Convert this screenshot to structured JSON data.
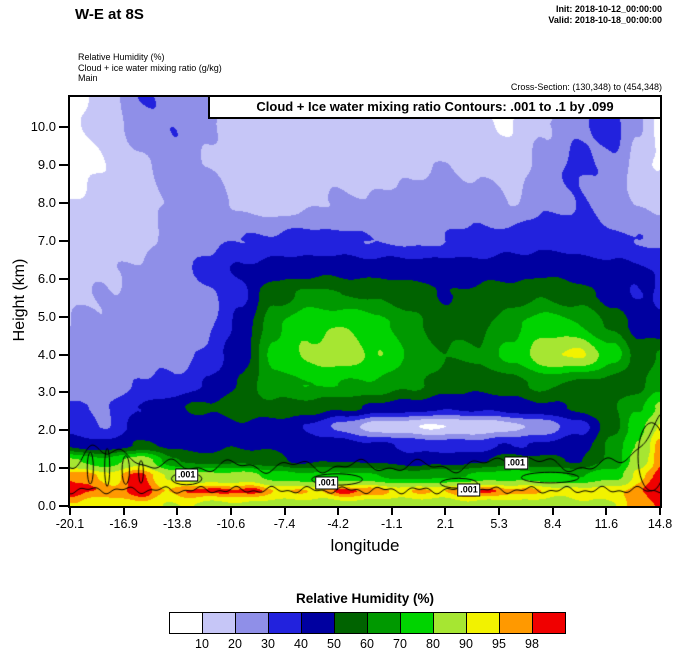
{
  "header": {
    "title": "W-E at 8S",
    "init_label": "Init: 2018-10-12_00:00:00",
    "valid_label": "Valid: 2018-10-18_00:00:00",
    "field_lines": [
      "Relative Humidity  (%)",
      "Cloud + ice water mixing ratio  (g/kg)",
      "Main"
    ],
    "cross_section": "Cross-Section: (130,348) to (454,348)"
  },
  "plot": {
    "contour_title": "Cloud + Ice water mixing ratio Contours: .001 to .1 by .099",
    "xlabel": "longitude",
    "ylabel": "Height (km)"
  },
  "legend": {
    "title": "Relative Humidity  (%)",
    "tick_labels": [
      "10",
      "20",
      "30",
      "40",
      "50",
      "60",
      "70",
      "80",
      "90",
      "95",
      "98"
    ]
  },
  "chart_data": {
    "type": "heatmap",
    "title": "W-E at 8S",
    "xlabel": "longitude",
    "ylabel": "Height (km)",
    "xlim": [
      -20.1,
      14.8
    ],
    "ylim": [
      0,
      10.8
    ],
    "x_tick_labels": [
      "-20.1",
      "-16.9",
      "-13.8",
      "-10.6",
      "-7.4",
      "-4.2",
      "-1.1",
      "2.1",
      "5.3",
      "8.4",
      "11.6",
      "14.8"
    ],
    "y_tick_values": [
      0,
      1,
      2,
      3,
      4,
      5,
      6,
      7,
      8,
      9,
      10
    ],
    "y_tick_labels": [
      "0.0",
      "1.0",
      "2.0",
      "3.0",
      "4.0",
      "5.0",
      "6.0",
      "7.0",
      "8.0",
      "9.0",
      "10.0"
    ],
    "levels": [
      10,
      20,
      30,
      40,
      50,
      60,
      70,
      80,
      90,
      95,
      98
    ],
    "colors": [
      "#ffffff",
      "#c6c6f7",
      "#8f8fe8",
      "#2222dd",
      "#0000a0",
      "#006300",
      "#009900",
      "#00d400",
      "#a6e632",
      "#f2f200",
      "#ff9900",
      "#f00000"
    ],
    "grid": {
      "x": [
        -20.1,
        -18,
        -16,
        -14,
        -12,
        -10,
        -8,
        -6,
        -4,
        -2,
        0,
        2,
        4,
        6,
        8,
        10,
        12,
        13.5,
        14.8
      ],
      "y": [
        0,
        0.4,
        0.8,
        1.2,
        1.6,
        2.1,
        2.6,
        3.2,
        4.0,
        4.8,
        5.6,
        6.2,
        7.0,
        8.0,
        9.0,
        10.0,
        10.8
      ],
      "values": [
        [
          93,
          92,
          93,
          90,
          88,
          88,
          87,
          86,
          86,
          85,
          85,
          85,
          86,
          86,
          86,
          87,
          90,
          96,
          99
        ],
        [
          99,
          97,
          99,
          96,
          99,
          99,
          96,
          94,
          99,
          97,
          94,
          96,
          99,
          97,
          94,
          92,
          94,
          97,
          99
        ],
        [
          99,
          93,
          99,
          88,
          82,
          85,
          76,
          72,
          74,
          70,
          66,
          68,
          72,
          76,
          72,
          70,
          76,
          92,
          99
        ],
        [
          82,
          72,
          88,
          62,
          55,
          58,
          52,
          48,
          50,
          48,
          45,
          45,
          48,
          56,
          52,
          50,
          62,
          86,
          97
        ],
        [
          48,
          42,
          52,
          48,
          45,
          50,
          48,
          45,
          45,
          42,
          38,
          35,
          36,
          40,
          42,
          46,
          62,
          82,
          96
        ],
        [
          36,
          30,
          42,
          45,
          45,
          48,
          45,
          40,
          26,
          14,
          11,
          9,
          12,
          16,
          24,
          36,
          56,
          76,
          92
        ],
        [
          30,
          30,
          40,
          48,
          52,
          55,
          58,
          55,
          52,
          48,
          45,
          42,
          42,
          45,
          48,
          52,
          60,
          68,
          82
        ],
        [
          25,
          26,
          30,
          32,
          40,
          52,
          66,
          70,
          70,
          68,
          62,
          56,
          52,
          56,
          62,
          58,
          55,
          56,
          66
        ],
        [
          22,
          24,
          27,
          26,
          32,
          46,
          72,
          82,
          86,
          80,
          70,
          60,
          62,
          72,
          88,
          92,
          74,
          56,
          60
        ],
        [
          20,
          22,
          25,
          23,
          29,
          42,
          68,
          78,
          80,
          75,
          64,
          55,
          58,
          66,
          76,
          70,
          58,
          45,
          42
        ],
        [
          18,
          20,
          24,
          22,
          27,
          38,
          56,
          62,
          60,
          58,
          54,
          50,
          52,
          55,
          58,
          54,
          46,
          40,
          38
        ],
        [
          15,
          18,
          22,
          26,
          34,
          42,
          46,
          47,
          48,
          47,
          48,
          47,
          46,
          47,
          48,
          46,
          44,
          42,
          40
        ],
        [
          12,
          15,
          18,
          24,
          28,
          30,
          32,
          34,
          32,
          30,
          28,
          30,
          32,
          35,
          38,
          35,
          32,
          30,
          28
        ],
        [
          10,
          12,
          15,
          22,
          25,
          18,
          15,
          18,
          22,
          20,
          25,
          28,
          25,
          20,
          28,
          30,
          25,
          20,
          18
        ],
        [
          8,
          10,
          18,
          25,
          20,
          15,
          12,
          12,
          15,
          15,
          18,
          20,
          18,
          15,
          25,
          32,
          28,
          15,
          10
        ],
        [
          8,
          12,
          25,
          30,
          22,
          15,
          18,
          15,
          12,
          12,
          15,
          12,
          12,
          10,
          20,
          28,
          35,
          20,
          8
        ],
        [
          5,
          15,
          30,
          28,
          25,
          18,
          15,
          12,
          10,
          10,
          12,
          10,
          8,
          8,
          12,
          22,
          30,
          25,
          10
        ]
      ]
    },
    "cloud_contours": {
      "levels_text": ".001 to .1 by .099",
      "band_top_km": 1.05,
      "band_bottom_km": 0.42,
      "band_bumps": [
        [
          -18.8,
          0.9,
          0.5
        ],
        [
          -16.8,
          0.8,
          0.4
        ],
        [
          6.3,
          1.4,
          0.25
        ],
        [
          15.2,
          1.8,
          1.3
        ]
      ],
      "loops": [
        [
          -18.9,
          1.0,
          0.18,
          0.42
        ],
        [
          -17.9,
          1.02,
          0.15,
          0.5
        ],
        [
          -16.8,
          0.95,
          0.22,
          0.38
        ],
        [
          -15.9,
          0.9,
          0.14,
          0.3
        ],
        [
          -13.2,
          0.72,
          0.9,
          0.16
        ],
        [
          -4.3,
          0.7,
          1.5,
          0.15
        ],
        [
          2.9,
          0.6,
          1.1,
          0.13
        ],
        [
          8.3,
          0.75,
          1.7,
          0.14
        ],
        [
          14.3,
          1.3,
          0.8,
          0.9
        ]
      ],
      "labels": [
        {
          "text": ".001",
          "lon": -13.2,
          "km": 0.82
        },
        {
          "text": ".001",
          "lon": -4.9,
          "km": 0.6
        },
        {
          "text": ".001",
          "lon": 3.5,
          "km": 0.42
        },
        {
          "text": ".001",
          "lon": 6.3,
          "km": 1.13
        }
      ]
    }
  }
}
